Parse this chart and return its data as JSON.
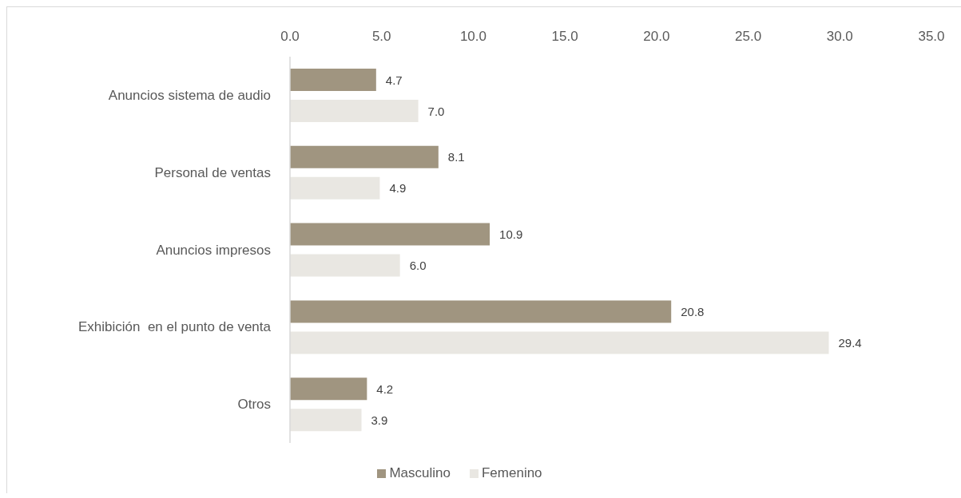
{
  "chart_data": {
    "type": "bar",
    "orientation": "horizontal",
    "categories": [
      "Anuncios sistema de audio",
      "Personal de ventas",
      "Anuncios impresos",
      "Exhibición  en el punto de venta",
      "Otros"
    ],
    "series": [
      {
        "name": "Masculino",
        "color": "#a09580",
        "values": [
          4.7,
          8.1,
          10.9,
          20.8,
          4.2
        ],
        "value_labels": [
          "4.7",
          "8.1",
          "10.9",
          "20.8",
          "4.2"
        ]
      },
      {
        "name": "Femenino",
        "color": "#e9e7e2",
        "values": [
          7.0,
          4.9,
          6.0,
          29.4,
          3.9
        ],
        "value_labels": [
          "7.0",
          "4.9",
          "6.0",
          "29.4",
          "3.9"
        ]
      }
    ],
    "xlim": [
      0,
      35
    ],
    "xticks": [
      {
        "value": 0,
        "label": "0.0"
      },
      {
        "value": 5,
        "label": "5.0"
      },
      {
        "value": 10,
        "label": "10.0"
      },
      {
        "value": 15,
        "label": "15.0"
      },
      {
        "value": 20,
        "label": "20.0"
      },
      {
        "value": 25,
        "label": "25.0"
      },
      {
        "value": 30,
        "label": "30.0"
      },
      {
        "value": 35,
        "label": "35.0"
      }
    ],
    "legend": "bottom"
  }
}
